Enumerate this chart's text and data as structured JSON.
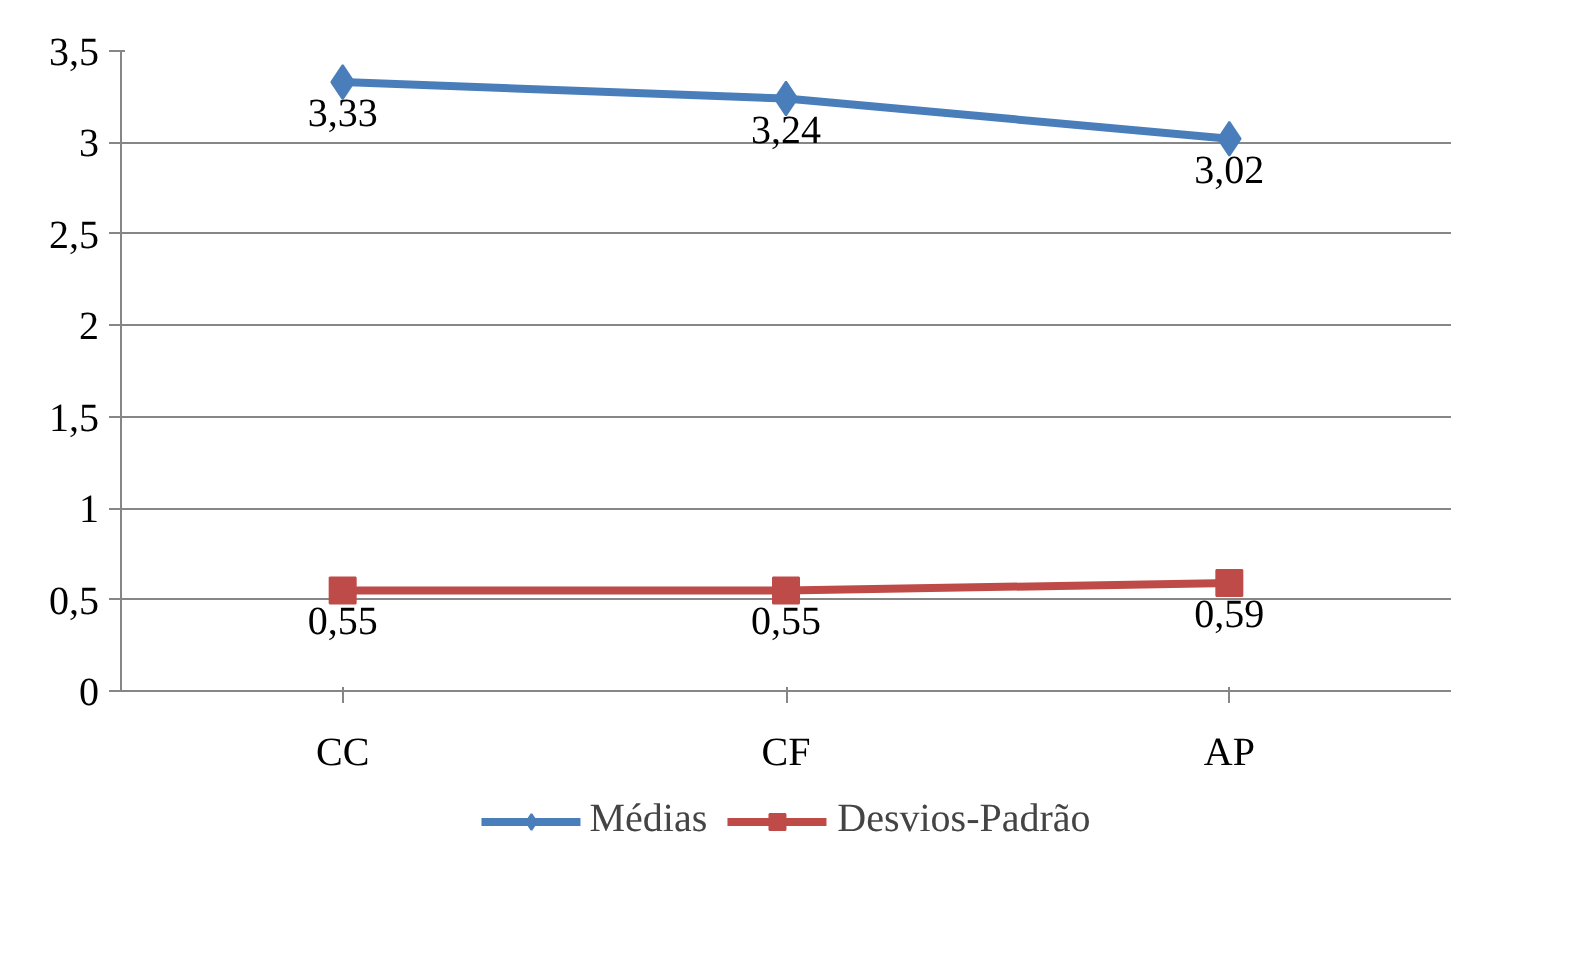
{
  "chart_data": {
    "type": "line",
    "categories": [
      "CC",
      "CF",
      "AP"
    ],
    "ylim": [
      0,
      3.5
    ],
    "yticks": [
      {
        "value": 0,
        "label": "0"
      },
      {
        "value": 0.5,
        "label": "0,5"
      },
      {
        "value": 1,
        "label": "1"
      },
      {
        "value": 1.5,
        "label": "1,5"
      },
      {
        "value": 2,
        "label": "2"
      },
      {
        "value": 2.5,
        "label": "2,5"
      },
      {
        "value": 3,
        "label": "3"
      },
      {
        "value": 3.5,
        "label": "3,5"
      }
    ],
    "series": [
      {
        "name": "Médias",
        "color": "#4a7ebb",
        "marker": "diamond",
        "values": [
          3.33,
          3.24,
          3.02
        ],
        "value_labels": [
          "3,33",
          "3,24",
          "3,02"
        ]
      },
      {
        "name": "Desvios-Padrão",
        "color": "#be4b48",
        "marker": "square",
        "values": [
          0.55,
          0.55,
          0.59
        ],
        "value_labels": [
          "0,55",
          "0,55",
          "0,59"
        ]
      }
    ],
    "grid": "y",
    "legend": "bottom",
    "line_style": "solid"
  }
}
